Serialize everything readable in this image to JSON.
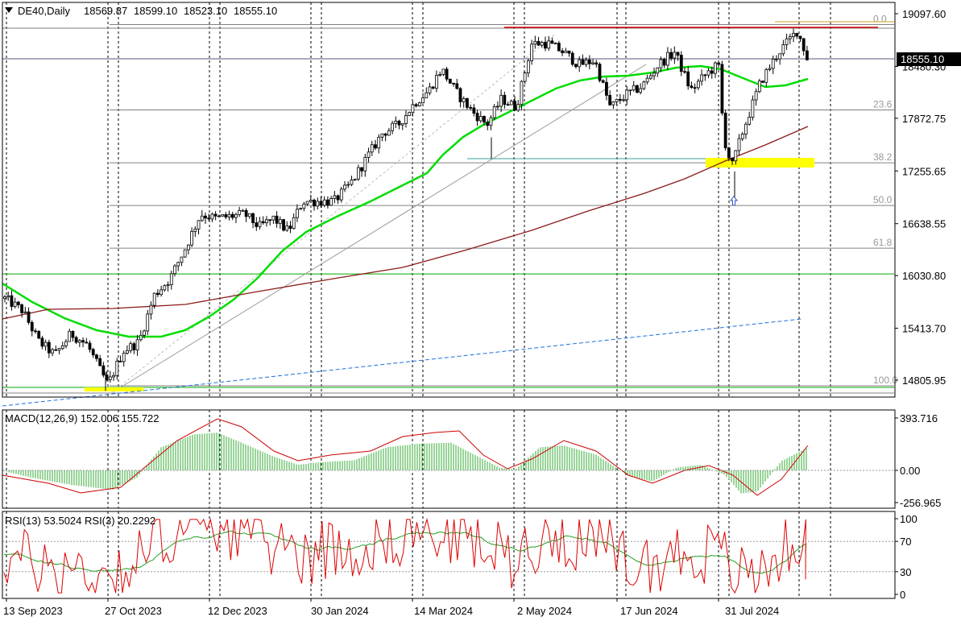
{
  "symbol_header": {
    "arrow_icon": "triangle-down-icon",
    "symbol": "DE40,Daily",
    "ohlc": [
      "18569.87",
      "18599.10",
      "18523.10",
      "18555.10"
    ]
  },
  "price_panel": {
    "current_price": "18555.10",
    "axis_ticks": [
      {
        "label": "19097.60",
        "value": 19097.6
      },
      {
        "label": "18480.30",
        "value": 18480.3
      },
      {
        "label": "17872.75",
        "value": 17872.75
      },
      {
        "label": "17255.65",
        "value": 17255.65
      },
      {
        "label": "16638.55",
        "value": 16638.55
      },
      {
        "label": "16030.80",
        "value": 16030.8
      },
      {
        "label": "15413.70",
        "value": 15413.7
      },
      {
        "label": "14805.95",
        "value": 14805.95
      }
    ],
    "fib_levels": [
      {
        "label": "0.0",
        "value": 18970
      },
      {
        "label": "23.6",
        "value": 17970
      },
      {
        "label": "38.2",
        "value": 17352
      },
      {
        "label": "50.0",
        "value": 16852
      },
      {
        "label": "61.8",
        "value": 16352
      },
      {
        "label": "100.0",
        "value": 14740
      }
    ],
    "colors": {
      "bull_candle": "#00c000",
      "bear_candle": "#ff0000",
      "ma_fast": "#00dd00",
      "ma_slow": "#8b1a1a",
      "resistance": "#d00000",
      "support_green": "#00aa00",
      "fib_line": "#808080",
      "zone_fill": "#ffff00",
      "blue_dashed": "#1e6fd9",
      "grid": "#000000"
    },
    "arrow_icon": "up-arrow-icon"
  },
  "macd_panel": {
    "label": "MACD(12,26,9) 152.006 155.722",
    "axis_ticks": [
      {
        "label": "393.716",
        "value": 393.716
      },
      {
        "label": "0.00",
        "value": 0
      },
      {
        "label": "-256.965",
        "value": -256.965
      }
    ]
  },
  "rsi_panel": {
    "label": "RSI(13) 53.5024  RSI(3) 20.2292",
    "axis_ticks": [
      {
        "label": "100",
        "value": 100
      },
      {
        "label": "70",
        "value": 70
      },
      {
        "label": "30",
        "value": 30
      },
      {
        "label": "0",
        "value": 0
      }
    ]
  },
  "time_axis": {
    "labels": [
      "13 Sep 2023",
      "27 Oct 2023",
      "12 Dec 2023",
      "30 Jan 2024",
      "14 Mar 2024",
      "2 May 2024",
      "17 Jun 2024",
      "31 Jul 2024"
    ]
  },
  "chart_data": {
    "type": "candlestick",
    "symbol": "DE40",
    "timeframe": "Daily",
    "last_bar": {
      "open": 18569.87,
      "high": 18599.1,
      "low": 18523.1,
      "close": 18555.1
    },
    "approx_close_path": [
      {
        "date": "2023-09-13",
        "close": 15750
      },
      {
        "date": "2023-09-20",
        "close": 15620
      },
      {
        "date": "2023-09-27",
        "close": 15260
      },
      {
        "date": "2023-10-04",
        "close": 15100
      },
      {
        "date": "2023-10-11",
        "close": 15350
      },
      {
        "date": "2023-10-18",
        "close": 15220
      },
      {
        "date": "2023-10-25",
        "close": 14850
      },
      {
        "date": "2023-10-27",
        "close": 14750
      },
      {
        "date": "2023-11-03",
        "close": 15150
      },
      {
        "date": "2023-11-10",
        "close": 15250
      },
      {
        "date": "2023-11-17",
        "close": 15800
      },
      {
        "date": "2023-11-24",
        "close": 15990
      },
      {
        "date": "2023-12-01",
        "close": 16350
      },
      {
        "date": "2023-12-08",
        "close": 16750
      },
      {
        "date": "2023-12-15",
        "close": 16700
      },
      {
        "date": "2023-12-29",
        "close": 16750
      },
      {
        "date": "2024-01-05",
        "close": 16600
      },
      {
        "date": "2024-01-12",
        "close": 16700
      },
      {
        "date": "2024-01-19",
        "close": 16550
      },
      {
        "date": "2024-01-26",
        "close": 16900
      },
      {
        "date": "2024-02-02",
        "close": 16900
      },
      {
        "date": "2024-02-09",
        "close": 16900
      },
      {
        "date": "2024-02-16",
        "close": 17100
      },
      {
        "date": "2024-02-23",
        "close": 17400
      },
      {
        "date": "2024-03-01",
        "close": 17700
      },
      {
        "date": "2024-03-08",
        "close": 17800
      },
      {
        "date": "2024-03-15",
        "close": 18050
      },
      {
        "date": "2024-03-22",
        "close": 18200
      },
      {
        "date": "2024-03-28",
        "close": 18450
      },
      {
        "date": "2024-04-05",
        "close": 18150
      },
      {
        "date": "2024-04-12",
        "close": 17950
      },
      {
        "date": "2024-04-19",
        "close": 17800
      },
      {
        "date": "2024-04-26",
        "close": 18100
      },
      {
        "date": "2024-05-03",
        "close": 18000
      },
      {
        "date": "2024-05-10",
        "close": 18750
      },
      {
        "date": "2024-05-17",
        "close": 18750
      },
      {
        "date": "2024-05-24",
        "close": 18650
      },
      {
        "date": "2024-05-31",
        "close": 18500
      },
      {
        "date": "2024-06-07",
        "close": 18550
      },
      {
        "date": "2024-06-14",
        "close": 18000
      },
      {
        "date": "2024-06-21",
        "close": 18150
      },
      {
        "date": "2024-06-28",
        "close": 18250
      },
      {
        "date": "2024-07-05",
        "close": 18500
      },
      {
        "date": "2024-07-12",
        "close": 18650
      },
      {
        "date": "2024-07-19",
        "close": 18200
      },
      {
        "date": "2024-07-26",
        "close": 18400
      },
      {
        "date": "2024-07-31",
        "close": 18500
      },
      {
        "date": "2024-08-02",
        "close": 17650
      },
      {
        "date": "2024-08-05",
        "close": 17300
      },
      {
        "date": "2024-08-09",
        "close": 17700
      },
      {
        "date": "2024-08-16",
        "close": 18300
      },
      {
        "date": "2024-08-23",
        "close": 18650
      },
      {
        "date": "2024-08-30",
        "close": 18900
      },
      {
        "date": "2024-09-03",
        "close": 18555
      }
    ]
  }
}
